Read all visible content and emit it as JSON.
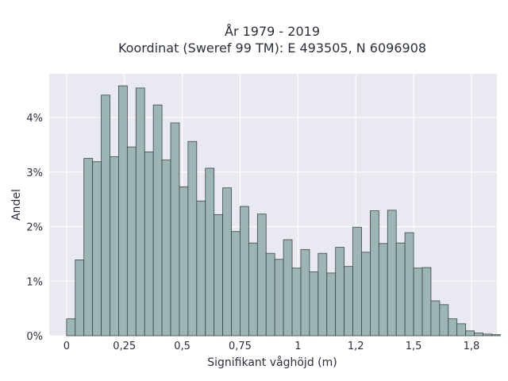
{
  "chart_data": {
    "type": "bar",
    "title_line1": "År 1979 - 2019",
    "title_line2": "Koordinat (Sweref 99 TM): E 493505, N 6096908",
    "xlabel": "Signifikant våghöjd (m)",
    "ylabel": "Andel",
    "x_range": [
      -0.075,
      1.86
    ],
    "ylim": [
      0,
      4.8
    ],
    "bin_width": 0.0375,
    "bin_start": 0,
    "grid": true,
    "colors": {
      "background": "#e9e9f1",
      "bar_fill": "#9db5b5",
      "bar_edge": "#3a4545",
      "grid": "#ffffff"
    },
    "x_ticks": [
      {
        "value": 0,
        "label": "0"
      },
      {
        "value": 0.25,
        "label": "0,25"
      },
      {
        "value": 0.5,
        "label": "0,5"
      },
      {
        "value": 0.75,
        "label": "0,75"
      },
      {
        "value": 1.0,
        "label": "1"
      },
      {
        "value": 1.25,
        "label": "1,2"
      },
      {
        "value": 1.5,
        "label": "1,5"
      },
      {
        "value": 1.75,
        "label": "1,8"
      }
    ],
    "y_ticks": [
      {
        "value": 0,
        "label": "0%"
      },
      {
        "value": 1,
        "label": "1%"
      },
      {
        "value": 2,
        "label": "2%"
      },
      {
        "value": 3,
        "label": "3%"
      },
      {
        "value": 4,
        "label": "4%"
      }
    ],
    "values": [
      0.31,
      1.39,
      3.25,
      3.19,
      4.41,
      3.28,
      4.58,
      3.46,
      4.54,
      3.37,
      4.23,
      3.22,
      3.9,
      2.73,
      3.56,
      2.47,
      3.07,
      2.22,
      2.71,
      1.91,
      2.37,
      1.7,
      2.23,
      1.51,
      1.4,
      1.76,
      1.24,
      1.58,
      1.17,
      1.51,
      1.15,
      1.62,
      1.27,
      1.99,
      1.53,
      2.29,
      1.69,
      2.3,
      1.7,
      1.89,
      1.24,
      1.25,
      0.64,
      0.57,
      0.31,
      0.22,
      0.09,
      0.05,
      0.03,
      0.02
    ]
  }
}
